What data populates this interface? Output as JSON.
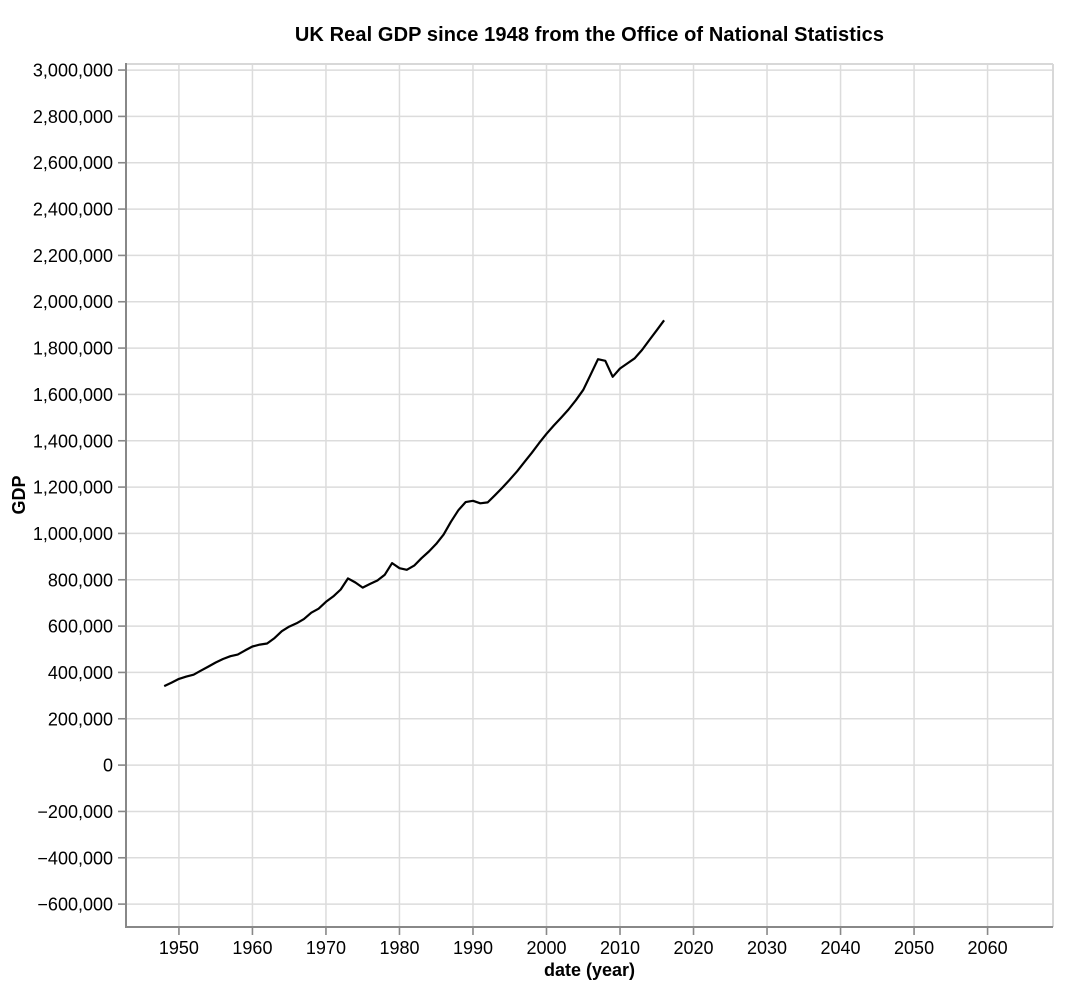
{
  "chart_data": {
    "type": "line",
    "title": "UK Real GDP since 1948 from the Office of National Statistics",
    "xlabel": "date (year)",
    "ylabel": "GDP",
    "grid": true,
    "legend": "none",
    "line_color": "#000000",
    "grid_color": "#dcdcdc",
    "border_color": "#d8d8d8",
    "axis_color": "#888888",
    "label_color": "#000000",
    "background_color": "#ffffff",
    "xlim": [
      1942.8,
      2068.9
    ],
    "ylim": [
      -698800,
      3026200
    ],
    "x_ticks": [
      1950,
      1960,
      1970,
      1980,
      1990,
      2000,
      2010,
      2020,
      2030,
      2040,
      2050,
      2060
    ],
    "x_tick_labels": [
      "1950",
      "1960",
      "1970",
      "1980",
      "1990",
      "2000",
      "2010",
      "2020",
      "2030",
      "2040",
      "2050",
      "2060"
    ],
    "y_ticks": [
      3000000,
      2800000,
      2600000,
      2400000,
      2200000,
      2000000,
      1800000,
      1600000,
      1400000,
      1200000,
      1000000,
      800000,
      600000,
      400000,
      200000,
      0,
      -200000,
      -400000,
      -600000
    ],
    "y_tick_labels": [
      "3,000,000",
      "2,800,000",
      "2,600,000",
      "2,400,000",
      "2,200,000",
      "2,000,000",
      "1,800,000",
      "1,600,000",
      "1,400,000",
      "1,200,000",
      "1,000,000",
      "800,000",
      "600,000",
      "400,000",
      "200,000",
      "0",
      "−200,000",
      "−400,000",
      "−600,000"
    ],
    "series": [
      {
        "name": "UK Real GDP",
        "x": [
          1948,
          1949,
          1950,
          1951,
          1952,
          1953,
          1954,
          1955,
          1956,
          1957,
          1958,
          1959,
          1960,
          1961,
          1962,
          1963,
          1964,
          1965,
          1966,
          1967,
          1968,
          1969,
          1970,
          1971,
          1972,
          1973,
          1974,
          1975,
          1976,
          1977,
          1978,
          1979,
          1980,
          1981,
          1982,
          1983,
          1984,
          1985,
          1986,
          1987,
          1988,
          1989,
          1990,
          1991,
          1992,
          1993,
          1994,
          1995,
          1996,
          1997,
          1998,
          1999,
          2000,
          2001,
          2002,
          2003,
          2004,
          2005,
          2006,
          2007,
          2008,
          2009,
          2010,
          2011,
          2012,
          2013,
          2014,
          2015,
          2016
        ],
        "y": [
          341000,
          356000,
          372000,
          382000,
          390000,
          408000,
          425000,
          443000,
          458000,
          470000,
          477000,
          495000,
          512000,
          520000,
          525000,
          548000,
          578000,
          598000,
          612000,
          630000,
          658000,
          675000,
          705000,
          728000,
          758000,
          806000,
          788000,
          766000,
          782000,
          797000,
          822000,
          872000,
          850000,
          843000,
          861000,
          893000,
          922000,
          955000,
          995000,
          1050000,
          1100000,
          1135000,
          1141000,
          1130000,
          1134000,
          1165000,
          1198000,
          1232000,
          1268000,
          1308000,
          1348000,
          1390000,
          1430000,
          1466000,
          1500000,
          1535000,
          1575000,
          1620000,
          1685000,
          1752000,
          1745000,
          1676000,
          1712000,
          1734000,
          1756000,
          1792000,
          1835000,
          1877000,
          1920000
        ]
      }
    ]
  }
}
